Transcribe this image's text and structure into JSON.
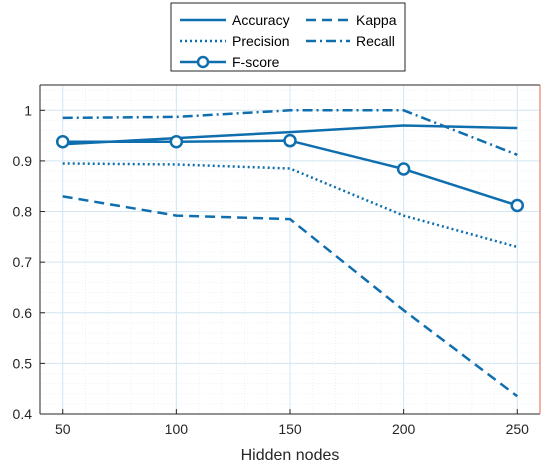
{
  "chart_data": {
    "type": "line",
    "x": [
      50,
      100,
      150,
      200,
      250
    ],
    "xlabel": "Hidden nodes",
    "ylabel": "",
    "xlim": [
      40,
      260
    ],
    "ylim": [
      0.4,
      1.05
    ],
    "xticks": [
      50,
      100,
      150,
      200,
      250
    ],
    "yticks": [
      0.4,
      0.5,
      0.6,
      0.7,
      0.8,
      0.9,
      1
    ],
    "xtick_labels": [
      "50",
      "100",
      "150",
      "200",
      "250"
    ],
    "ytick_labels": [
      "0.4",
      "0.5",
      "0.6",
      "0.7",
      "0.8",
      "0.9",
      "1"
    ],
    "grid": true,
    "minor_grid": true,
    "legend_position": "top-center",
    "series": [
      {
        "name": "Accuracy",
        "style": "solid",
        "marker": "none",
        "values": [
          0.933,
          0.945,
          0.957,
          0.97,
          0.965
        ]
      },
      {
        "name": "Kappa",
        "style": "dashed",
        "marker": "none",
        "values": [
          0.83,
          0.792,
          0.785,
          0.605,
          0.435
        ]
      },
      {
        "name": "Precision",
        "style": "dotted",
        "marker": "none",
        "values": [
          0.895,
          0.893,
          0.885,
          0.792,
          0.73
        ]
      },
      {
        "name": "Recall",
        "style": "dashdot",
        "marker": "none",
        "values": [
          0.985,
          0.987,
          1.0,
          1.0,
          0.912
        ]
      },
      {
        "name": "F-score",
        "style": "solid",
        "marker": "circle",
        "values": [
          0.938,
          0.938,
          0.94,
          0.884,
          0.812
        ]
      }
    ]
  },
  "colors": {
    "line": "#0f6fae",
    "grid": "#d2e6f2",
    "grid_minor": "#e8f2f9",
    "axis": "#262626",
    "right_border": "#e8664a"
  }
}
